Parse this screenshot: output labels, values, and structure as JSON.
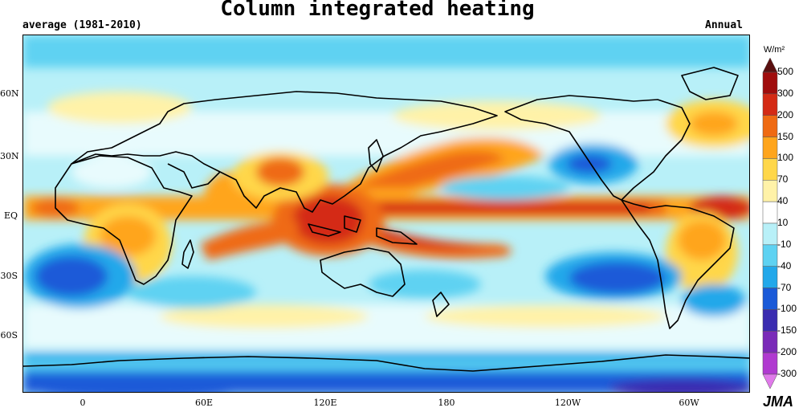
{
  "title": "Column integrated heating",
  "subtitle_left": "average (1981-2010)",
  "subtitle_right": "Annual",
  "colorbar": {
    "unit": "W/m²",
    "levels": [
      "500",
      "300",
      "200",
      "150",
      "100",
      "70",
      "40",
      "10",
      "-10",
      "-40",
      "-70",
      "-100",
      "-150",
      "-200",
      "-300"
    ],
    "colors": [
      "#5a0f0f",
      "#a00c0c",
      "#d42a14",
      "#ef6a12",
      "#ffa51c",
      "#ffd74a",
      "#fff2a8",
      "#ffffff",
      "#b8f0f8",
      "#5ed2f2",
      "#22a8ea",
      "#1a5ad8",
      "#3a2cb0",
      "#7a2ab8",
      "#b03ad0",
      "#e07aea"
    ]
  },
  "lat_labels": [
    "60N",
    "30N",
    "EQ",
    "30S",
    "60S"
  ],
  "lon_labels": [
    "0",
    "60E",
    "120E",
    "180",
    "120W",
    "60W"
  ],
  "logo": "JMA"
}
